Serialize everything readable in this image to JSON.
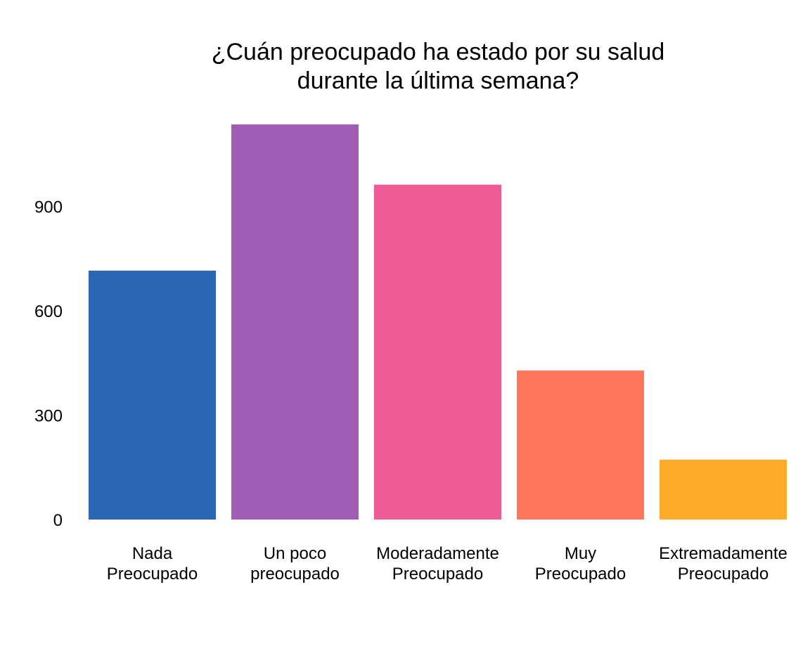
{
  "chart_data": {
    "type": "bar",
    "title": [
      "¿Cuán preocupado ha estado por su salud",
      "durante la última semana?"
    ],
    "xlabel": "",
    "ylabel": "",
    "categories": [
      [
        "Nada",
        "Preocupado"
      ],
      [
        "Un poco",
        "preocupado"
      ],
      [
        "Moderadamente",
        "Preocupado"
      ],
      [
        "Muy",
        "Preocupado"
      ],
      [
        "Extremadamente",
        "Preocupado"
      ]
    ],
    "values": [
      715,
      1135,
      962,
      428,
      172
    ],
    "colors": [
      "#2A66B3",
      "#A15DB5",
      "#EF5B94",
      "#FF765D",
      "#FFAB2C"
    ],
    "yticks": [
      0,
      300,
      600,
      900
    ],
    "ylim": [
      0,
      1135
    ],
    "grid": false,
    "legend": "none"
  }
}
